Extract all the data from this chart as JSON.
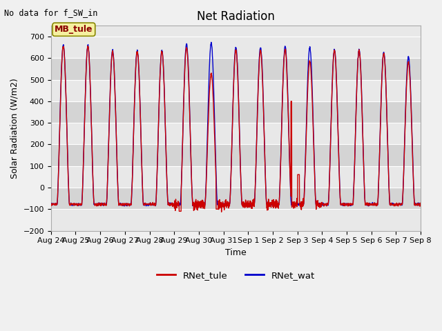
{
  "title": "Net Radiation",
  "xlabel": "Time",
  "ylabel": "Solar Radiation (W/m2)",
  "top_left_text": "No data for f_SW_in",
  "legend_box_text": "MB_tule",
  "ylim": [
    -200,
    750
  ],
  "yticks": [
    -200,
    -100,
    0,
    100,
    200,
    300,
    400,
    500,
    600,
    700
  ],
  "xtick_labels": [
    "Aug 24",
    "Aug 25",
    "Aug 26",
    "Aug 27",
    "Aug 28",
    "Aug 29",
    "Aug 30",
    "Aug 31",
    "Sep 1",
    "Sep 2",
    "Sep 3",
    "Sep 4",
    "Sep 5",
    "Sep 6",
    "Sep 7",
    "Sep 8"
  ],
  "color_tule": "#cc0000",
  "color_wat": "#0000cc",
  "background_fig": "#f0f0f0",
  "band_light": "#e8e8e8",
  "band_dark": "#d4d4d4",
  "line_width": 1.0,
  "n_days": 15,
  "ppd": 144,
  "night_baseline": -78,
  "day_peak_wat": 655,
  "day_peak_tule": 645,
  "title_fontsize": 12,
  "label_fontsize": 9,
  "tick_fontsize": 8
}
